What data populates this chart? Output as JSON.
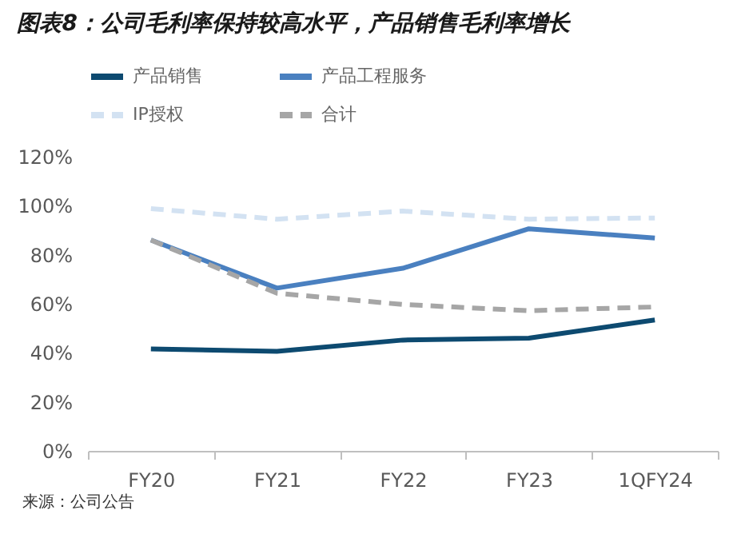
{
  "chart_data": {
    "type": "line",
    "title": "图表8：公司毛利率保持较高水平，产品销售毛利率增长",
    "categories": [
      "FY20",
      "FY21",
      "FY22",
      "FY23",
      "1QFY24"
    ],
    "series": [
      {
        "name": "产品销售",
        "color": "#0d4a70",
        "values": [
          41.6,
          40.6,
          45.2,
          46,
          53.4
        ],
        "line_style": "solid"
      },
      {
        "name": "产品工程服务",
        "color": "#4a80c0",
        "values": [
          86,
          66.4,
          74.5,
          90.6,
          86.8
        ],
        "line_style": "solid"
      },
      {
        "name": "IP授权",
        "color": "#d3e2f2",
        "values": [
          98.8,
          94.5,
          97.8,
          94.5,
          95
        ],
        "line_style": "dashed"
      },
      {
        "name": "合计",
        "color": "#a6a6a6",
        "values": [
          86,
          64.3,
          59.7,
          57.2,
          58.7
        ],
        "line_style": "dashed"
      }
    ],
    "ylim": [
      0,
      120
    ],
    "yticks": [
      {
        "value": 0,
        "label": "0%"
      },
      {
        "value": 20,
        "label": "20%"
      },
      {
        "value": 40,
        "label": "40%"
      },
      {
        "value": 60,
        "label": "60%"
      },
      {
        "value": 80,
        "label": "80%"
      },
      {
        "value": 100,
        "label": "100%"
      },
      {
        "value": 120,
        "label": "120%"
      }
    ],
    "grid": false,
    "legend": "top",
    "marker": "none",
    "annotations": [
      "来源：公司公告"
    ]
  }
}
